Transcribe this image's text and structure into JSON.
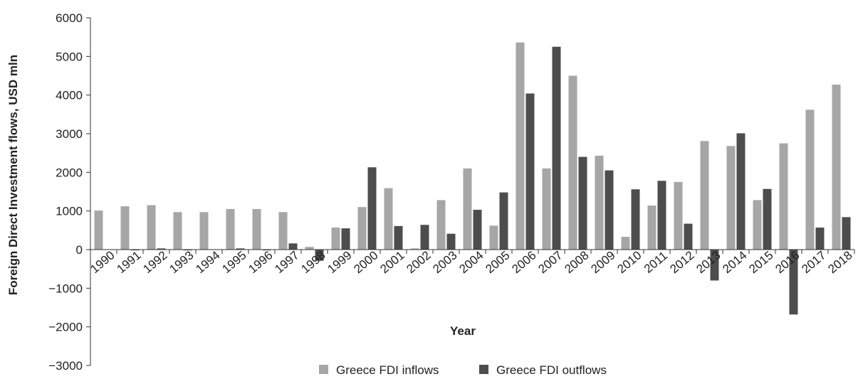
{
  "chart_data": {
    "type": "bar",
    "title": "",
    "xlabel": "Year",
    "ylabel": "Foreign Direct Investment flows, USD mln",
    "ylim": [
      -3000,
      6000
    ],
    "yticks": [
      -3000,
      -2000,
      -1000,
      0,
      1000,
      2000,
      3000,
      4000,
      5000,
      6000
    ],
    "ytick_labels": [
      "−3000",
      "−2000",
      "−1000",
      "0",
      "1000",
      "2000",
      "3000",
      "4000",
      "5000",
      "6000"
    ],
    "grid": false,
    "legend_position": "bottom",
    "categories": [
      "1990",
      "1991",
      "1992",
      "1993",
      "1994",
      "1995",
      "1996",
      "1997",
      "1998",
      "1999",
      "2000",
      "2001",
      "2002",
      "2003",
      "2004",
      "2005",
      "2006",
      "2007",
      "2008",
      "2009",
      "2010",
      "2011",
      "2012",
      "2013",
      "2014",
      "2015",
      "2016",
      "2017",
      "2018"
    ],
    "series": [
      {
        "name": "Greece FDI inflows",
        "color": "#a6a6a6",
        "values": [
          1010,
          1120,
          1150,
          970,
          970,
          1050,
          1050,
          970,
          70,
          570,
          1100,
          1590,
          30,
          1280,
          2100,
          620,
          5360,
          2100,
          4500,
          2430,
          330,
          1140,
          1750,
          2810,
          2680,
          1280,
          2750,
          3620,
          4270
        ]
      },
      {
        "name": "Greece FDI outflows",
        "color": "#4d4d4d",
        "values": [
          10,
          -20,
          30,
          -20,
          10,
          30,
          -20,
          160,
          -290,
          550,
          2130,
          610,
          640,
          410,
          1030,
          1480,
          4040,
          5250,
          2400,
          2050,
          1560,
          1780,
          670,
          -800,
          3010,
          1570,
          -1680,
          570,
          840
        ]
      }
    ]
  }
}
